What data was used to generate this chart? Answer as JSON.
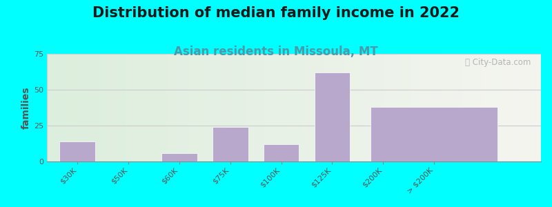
{
  "title": "Distribution of median family income in 2022",
  "subtitle": "Asian residents in Missoula, MT",
  "ylabel": "families",
  "background_color": "#00FFFF",
  "plot_bg_left": "#dceedd",
  "plot_bg_right": "#f5f5f0",
  "bar_color": "#b8a8cc",
  "bar_edge_color": "#ffffff",
  "categories": [
    "$30K",
    "$50K",
    "$60K",
    "$75K",
    "$100K",
    "$125K",
    "$200K",
    "> $200K"
  ],
  "values": [
    14,
    0,
    6,
    24,
    12,
    62,
    0,
    38
  ],
  "bar_widths": [
    0.7,
    0.7,
    0.7,
    0.7,
    0.7,
    0.7,
    0.7,
    2.5
  ],
  "ylim": [
    0,
    75
  ],
  "yticks": [
    0,
    25,
    50,
    75
  ],
  "title_fontsize": 15,
  "subtitle_fontsize": 12,
  "subtitle_color": "#4a9aaa",
  "ylabel_fontsize": 10,
  "tick_fontsize": 8,
  "watermark_text": "ⓘ City-Data.com",
  "watermark_color": "#aaaaaa"
}
